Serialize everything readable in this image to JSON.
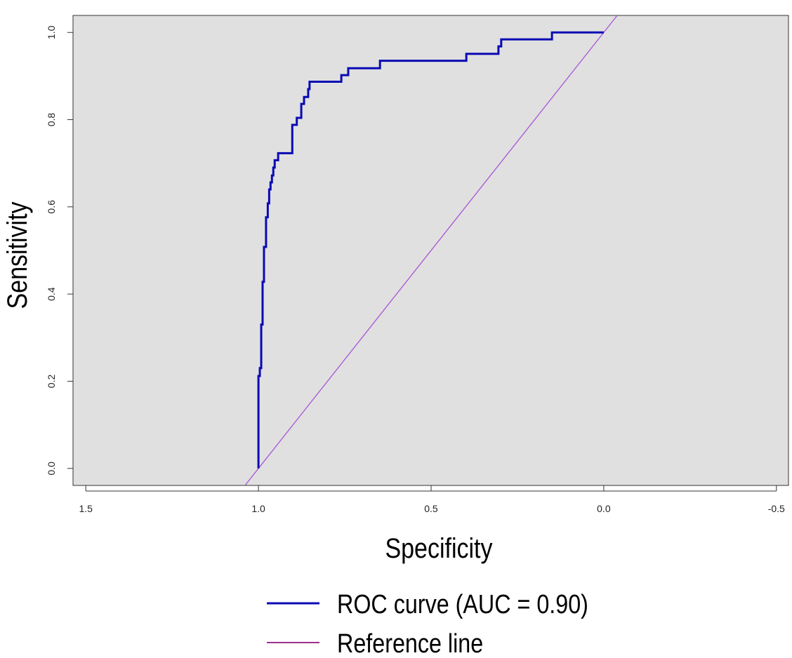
{
  "chart_data": {
    "type": "line",
    "title": "",
    "xlabel": "Specificity",
    "ylabel": "Sensitivity",
    "xlim": [
      1.537,
      -0.535
    ],
    "ylim": [
      -0.039,
      1.039
    ],
    "x_reversed": true,
    "grid": false,
    "background": "#e0e0e0",
    "xticks": [
      1.5,
      1.0,
      0.5,
      0.0,
      -0.5
    ],
    "xtick_labels": [
      "1.5",
      "1.0",
      "0.5",
      "0.0",
      "-0.5"
    ],
    "yticks": [
      0.0,
      0.2,
      0.4,
      0.6,
      0.8,
      1.0
    ],
    "ytick_labels": [
      "0.0",
      "0.2",
      "0.4",
      "0.6",
      "0.8",
      "1.0"
    ],
    "legend_position": "bottom",
    "series": [
      {
        "name": "ROC curve (AUC = 0.90)",
        "color": "#0a0ab4",
        "style": "step",
        "specificity": [
          1.0,
          0.996,
          0.992,
          0.988,
          0.984,
          0.978,
          0.973,
          0.969,
          0.965,
          0.961,
          0.957,
          0.953,
          0.943,
          0.902,
          0.889,
          0.876,
          0.868,
          0.856,
          0.852,
          0.76,
          0.74,
          0.648,
          0.398,
          0.305,
          0.297,
          0.15,
          0.0
        ],
        "sensitivity": [
          0.212,
          0.23,
          0.33,
          0.428,
          0.508,
          0.576,
          0.608,
          0.64,
          0.656,
          0.672,
          0.69,
          0.707,
          0.723,
          0.788,
          0.804,
          0.836,
          0.852,
          0.87,
          0.887,
          0.902,
          0.918,
          0.935,
          0.951,
          0.968,
          0.984,
          1.0,
          1.0
        ]
      },
      {
        "name": "Reference line",
        "color": "#a855d8",
        "legend_color": "#a0308a",
        "style": "line",
        "specificity": [
          1.039,
          -0.039
        ],
        "sensitivity": [
          -0.039,
          1.039
        ]
      }
    ],
    "auc": 0.9
  }
}
